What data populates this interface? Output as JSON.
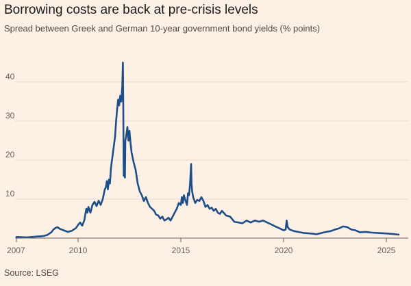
{
  "chart_data": {
    "type": "line",
    "title": "Borrowing costs are back at pre-crisis levels",
    "subtitle": "Spread between Greek and German 10-year government bond yields (% points)",
    "source": "Source: LSEG",
    "xlabel": "",
    "ylabel": "% points",
    "xlim": [
      2007,
      2025.8
    ],
    "ylim": [
      0,
      47
    ],
    "x_ticks": [
      "2007",
      "2010",
      "2015",
      "2020",
      "2025"
    ],
    "y_ticks": [
      "10",
      "20",
      "30",
      "40"
    ],
    "line_color": "#1d4e89",
    "series": [
      {
        "name": "Greece-Germany 10y spread",
        "x": [
          2007.0,
          2007.5,
          2008.0,
          2008.3,
          2008.5,
          2008.7,
          2008.8,
          2008.9,
          2009.0,
          2009.1,
          2009.3,
          2009.5,
          2009.7,
          2009.9,
          2010.0,
          2010.1,
          2010.2,
          2010.3,
          2010.35,
          2010.4,
          2010.45,
          2010.5,
          2010.55,
          2010.6,
          2010.7,
          2010.8,
          2010.9,
          2011.0,
          2011.1,
          2011.2,
          2011.3,
          2011.35,
          2011.4,
          2011.45,
          2011.5,
          2011.55,
          2011.6,
          2011.65,
          2011.7,
          2011.75,
          2011.8,
          2011.85,
          2011.9,
          2011.95,
          2012.0,
          2012.05,
          2012.1,
          2012.15,
          2012.18,
          2012.2,
          2012.22,
          2012.25,
          2012.28,
          2012.3,
          2012.35,
          2012.4,
          2012.45,
          2012.5,
          2012.55,
          2012.6,
          2012.7,
          2012.8,
          2012.9,
          2013.0,
          2013.1,
          2013.2,
          2013.3,
          2013.4,
          2013.5,
          2013.6,
          2013.7,
          2013.8,
          2013.9,
          2014.0,
          2014.1,
          2014.2,
          2014.3,
          2014.4,
          2014.5,
          2014.6,
          2014.7,
          2014.8,
          2014.9,
          2015.0,
          2015.05,
          2015.1,
          2015.15,
          2015.2,
          2015.3,
          2015.35,
          2015.4,
          2015.45,
          2015.5,
          2015.52,
          2015.55,
          2015.6,
          2015.7,
          2015.8,
          2015.9,
          2016.0,
          2016.1,
          2016.2,
          2016.3,
          2016.4,
          2016.5,
          2016.6,
          2016.7,
          2016.8,
          2016.9,
          2017.0,
          2017.2,
          2017.4,
          2017.6,
          2017.8,
          2018.0,
          2018.2,
          2018.4,
          2018.6,
          2018.8,
          2019.0,
          2019.2,
          2019.4,
          2019.6,
          2019.8,
          2020.0,
          2020.1,
          2020.15,
          2020.2,
          2020.3,
          2020.5,
          2020.7,
          2021.0,
          2021.3,
          2021.6,
          2022.0,
          2022.3,
          2022.5,
          2022.7,
          2022.9,
          2023.1,
          2023.3,
          2023.5,
          2023.7,
          2024.0,
          2024.3,
          2024.6,
          2025.0,
          2025.2,
          2025.4,
          2025.6
        ],
        "values": [
          0.3,
          0.2,
          0.4,
          0.5,
          0.8,
          1.5,
          2.2,
          2.6,
          2.8,
          2.4,
          2.0,
          1.6,
          1.9,
          2.6,
          3.4,
          4.0,
          3.2,
          4.5,
          6.0,
          7.5,
          6.5,
          8.0,
          7.2,
          6.5,
          8.5,
          9.3,
          8.2,
          9.6,
          8.5,
          10.0,
          12.5,
          13.0,
          14.6,
          12.5,
          15.0,
          14.0,
          18.0,
          20.0,
          22.0,
          24.0,
          26.0,
          30.0,
          33.0,
          35.5,
          34.0,
          36.5,
          35.0,
          39.0,
          45.0,
          33.0,
          16.0,
          17.0,
          15.5,
          25.0,
          26.5,
          28.5,
          25.0,
          27.5,
          24.5,
          22.0,
          19.5,
          17.5,
          14.0,
          12.0,
          11.0,
          9.5,
          10.5,
          9.0,
          8.0,
          7.5,
          7.0,
          6.0,
          5.8,
          5.0,
          5.5,
          4.5,
          4.8,
          5.2,
          4.5,
          5.5,
          6.5,
          7.5,
          9.0,
          8.5,
          10.5,
          9.0,
          11.0,
          10.0,
          8.5,
          11.5,
          11.0,
          14.0,
          19.0,
          14.0,
          12.0,
          10.5,
          9.0,
          9.8,
          9.5,
          10.5,
          9.5,
          8.0,
          8.5,
          7.5,
          7.8,
          7.0,
          7.5,
          6.5,
          6.2,
          7.0,
          5.8,
          5.5,
          4.2,
          4.0,
          3.8,
          4.5,
          4.0,
          4.5,
          4.2,
          4.5,
          4.0,
          3.5,
          3.0,
          2.5,
          2.0,
          2.2,
          4.5,
          2.8,
          2.2,
          1.8,
          1.6,
          1.3,
          1.2,
          1.0,
          1.5,
          1.8,
          2.2,
          2.5,
          3.0,
          2.8,
          2.2,
          2.0,
          1.5,
          1.6,
          1.4,
          1.3,
          1.2,
          1.1,
          1.0,
          0.9
        ]
      }
    ]
  }
}
